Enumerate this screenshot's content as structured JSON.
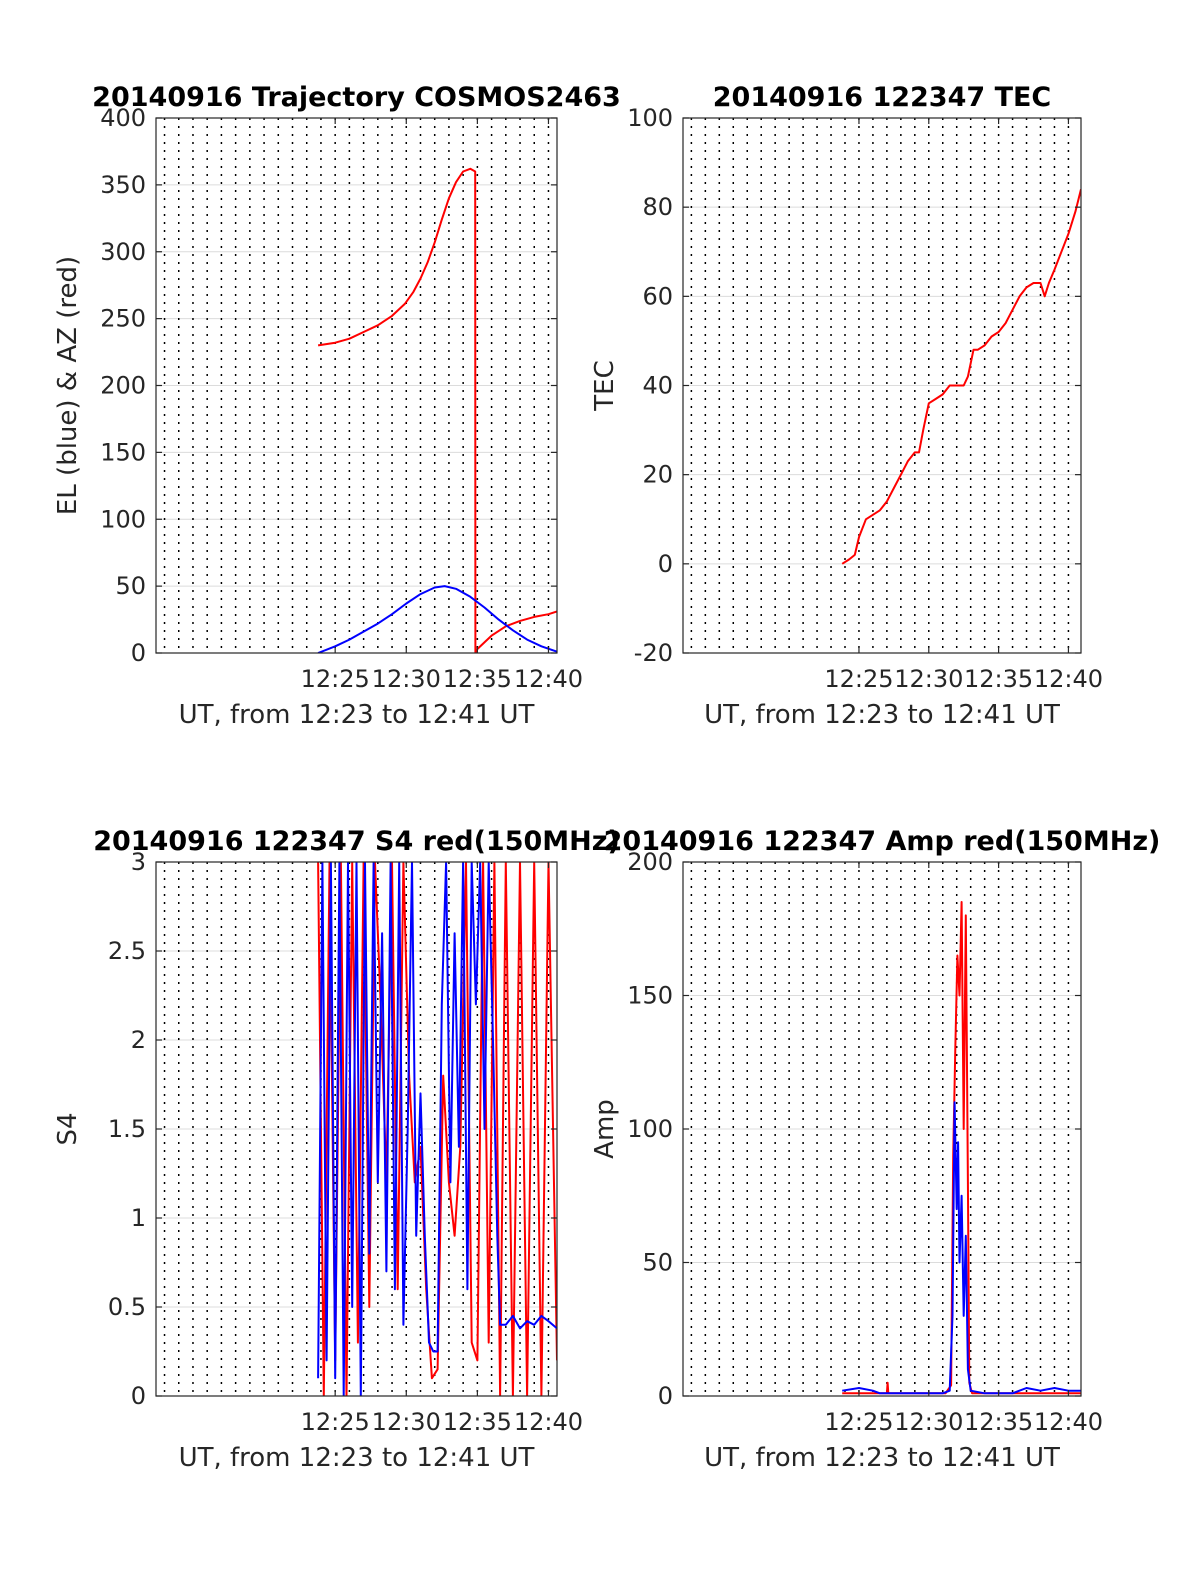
{
  "chart_data": [
    {
      "type": "line",
      "title": "20140916 Trajectory COSMOS2463",
      "xlabel": "UT, from 12:23 to 12:41 UT",
      "ylabel": "EL (blue) & AZ (red)",
      "xlim": [
        12.4,
        40.6
      ],
      "ylim": [
        0,
        400
      ],
      "xticks": [
        25,
        30,
        35,
        40
      ],
      "xtick_labels": [
        "12:25",
        "12:30",
        "12:35",
        "12:40"
      ],
      "yticks": [
        0,
        50,
        100,
        150,
        200,
        250,
        300,
        350,
        400
      ],
      "ytick_labels": [
        "0",
        "50",
        "100",
        "150",
        "200",
        "250",
        "300",
        "350",
        "400"
      ],
      "grid": true,
      "colors": {
        "red": "#ff0000",
        "blue": "#0000ff"
      },
      "series": [
        {
          "color": "#ff0000",
          "x": [
            23.8,
            25,
            26,
            27,
            28,
            29,
            29.9,
            30.5,
            31,
            31.5,
            32,
            32.5,
            33,
            33.5,
            34,
            34.5,
            34.85,
            34.86,
            35,
            36,
            37,
            38,
            39,
            40,
            40.6
          ],
          "y": [
            230,
            232,
            235,
            240,
            245,
            252,
            261,
            270,
            280,
            292,
            307,
            324,
            340,
            352,
            360,
            362,
            360,
            0,
            3,
            13,
            20,
            24,
            27,
            29,
            31
          ]
        },
        {
          "color": "#0000ff",
          "x": [
            23.8,
            25,
            26,
            27,
            28,
            29,
            30,
            31,
            32,
            32.7,
            33.5,
            34.5,
            35.5,
            36.5,
            37.5,
            38.5,
            39.5,
            40.6
          ],
          "y": [
            0,
            5,
            10,
            16,
            22,
            29,
            37,
            44,
            49,
            50,
            48,
            42,
            34,
            25,
            17,
            10,
            5,
            1
          ]
        }
      ]
    },
    {
      "type": "line",
      "title": "20140916 122347 TEC",
      "xlabel": "UT, from 12:23 to 12:41 UT",
      "ylabel": "TEC",
      "xlim": [
        12.4,
        40.9
      ],
      "ylim": [
        -20,
        100
      ],
      "xticks": [
        25,
        30,
        35,
        40
      ],
      "xtick_labels": [
        "12:25",
        "12:30",
        "12:35",
        "12:40"
      ],
      "yticks": [
        -20,
        0,
        20,
        40,
        60,
        80,
        100
      ],
      "ytick_labels": [
        "-20",
        "0",
        "20",
        "40",
        "60",
        "80",
        "100"
      ],
      "grid": true,
      "series": [
        {
          "color": "#ff0000",
          "x": [
            23.8,
            24.3,
            24.7,
            25,
            25.5,
            26,
            26.5,
            27,
            27.5,
            28,
            28.5,
            29,
            29.3,
            29.6,
            30,
            30.5,
            31,
            31.5,
            32,
            32.5,
            32.8,
            33.2,
            33.5,
            34,
            34.5,
            35,
            35.5,
            36,
            36.5,
            37,
            37.5,
            38,
            38.3,
            38.6,
            39,
            39.5,
            40,
            40.5,
            40.9
          ],
          "y": [
            0,
            1,
            2,
            6,
            10,
            11,
            12,
            14,
            17,
            20,
            23,
            25,
            25,
            30,
            36,
            37,
            38,
            40,
            40,
            40,
            42,
            48,
            48,
            49,
            51,
            52,
            54,
            57,
            60,
            62,
            63,
            63,
            60,
            63,
            66,
            70,
            74,
            79,
            84
          ]
        }
      ]
    },
    {
      "type": "line",
      "title": "20140916 122347 S4 red(150MHz)",
      "xlabel": "UT, from 12:23 to 12:41 UT",
      "ylabel": "S4",
      "xlim": [
        12.4,
        40.6
      ],
      "ylim": [
        0,
        3
      ],
      "xticks": [
        25,
        30,
        35,
        40
      ],
      "xtick_labels": [
        "12:25",
        "12:30",
        "12:35",
        "12:40"
      ],
      "yticks": [
        0,
        0.5,
        1,
        1.5,
        2,
        2.5,
        3
      ],
      "ytick_labels": [
        "0",
        "0.5",
        "1",
        "1.5",
        "2",
        "2.5",
        "3"
      ],
      "grid": true,
      "series": [
        {
          "color": "#ff0000",
          "x": [
            23.8,
            24.2,
            24.6,
            25,
            25.4,
            25.8,
            26.2,
            26.6,
            27,
            27.4,
            27.8,
            28.2,
            28.6,
            29,
            29.4,
            29.8,
            30.2,
            30.6,
            31,
            31.4,
            31.8,
            32.2,
            32.6,
            33,
            33.4,
            33.8,
            34.2,
            34.6,
            35,
            35.4,
            35.8,
            36.2,
            36.6,
            37,
            37.5,
            38,
            38.5,
            39,
            39.5,
            40,
            40.6
          ],
          "y": [
            3,
            0,
            3,
            0.2,
            3,
            0,
            3,
            0.3,
            3,
            0.5,
            3,
            2.2,
            1.2,
            3,
            0.6,
            3,
            1.8,
            1.2,
            1.4,
            0.6,
            0.1,
            0.15,
            1.8,
            1.2,
            0.9,
            1.4,
            3,
            0.3,
            0.2,
            3,
            0.3,
            3,
            0,
            3,
            0,
            3,
            0,
            3,
            0,
            3,
            0.2
          ]
        },
        {
          "color": "#0000ff",
          "x": [
            23.8,
            24.1,
            24.4,
            24.7,
            25,
            25.3,
            25.6,
            25.9,
            26.2,
            26.5,
            26.8,
            27.1,
            27.4,
            27.7,
            28,
            28.3,
            28.6,
            28.9,
            29.2,
            29.5,
            29.8,
            30.1,
            30.4,
            30.7,
            31,
            31.3,
            31.6,
            31.9,
            32.2,
            32.5,
            32.8,
            33.1,
            33.4,
            33.7,
            34,
            34.3,
            34.6,
            34.9,
            35.2,
            35.5,
            35.8,
            36.1,
            36.4,
            36.6,
            37,
            37.5,
            38,
            38.5,
            39,
            39.5,
            40,
            40.6
          ],
          "y": [
            0.1,
            3,
            0.2,
            3,
            0.1,
            3,
            0,
            3,
            0.5,
            3,
            0,
            3,
            0.8,
            3,
            1.2,
            2.6,
            0.7,
            3,
            0.6,
            3,
            0.4,
            1.5,
            3,
            0.9,
            1.7,
            0.9,
            0.3,
            0.25,
            0.25,
            2.2,
            3,
            1.2,
            2.6,
            1.4,
            3,
            0.6,
            3,
            2.2,
            3,
            1.5,
            3,
            2,
            0.9,
            0.4,
            0.4,
            0.45,
            0.38,
            0.42,
            0.4,
            0.45,
            0.42,
            0.38
          ]
        }
      ]
    },
    {
      "type": "line",
      "title": "20140916 122347 Amp red(150MHz)",
      "xlabel": "UT, from 12:23 to 12:41 UT",
      "ylabel": "Amp",
      "xlim": [
        12.4,
        40.9
      ],
      "ylim": [
        0,
        200
      ],
      "xticks": [
        25,
        30,
        35,
        40
      ],
      "xtick_labels": [
        "12:25",
        "12:30",
        "12:35",
        "12:40"
      ],
      "yticks": [
        0,
        50,
        100,
        150,
        200
      ],
      "ytick_labels": [
        "0",
        "50",
        "100",
        "150",
        "200"
      ],
      "grid": true,
      "series": [
        {
          "color": "#ff0000",
          "x": [
            23.8,
            26.5,
            27,
            27.05,
            27.1,
            27.2,
            31.2,
            31.6,
            31.75,
            31.9,
            32.05,
            32.2,
            32.35,
            32.5,
            32.65,
            32.8,
            32.9,
            33.1,
            33.5,
            40.9
          ],
          "y": [
            1,
            1,
            1,
            5,
            1,
            1,
            1,
            4,
            90,
            130,
            165,
            150,
            185,
            100,
            180,
            80,
            5,
            1,
            1,
            1
          ]
        },
        {
          "color": "#0000ff",
          "x": [
            23.8,
            25,
            26,
            26.5,
            30,
            31,
            31.5,
            31.7,
            31.85,
            32,
            32.1,
            32.2,
            32.35,
            32.5,
            32.65,
            32.8,
            33,
            34,
            36,
            37,
            38,
            39,
            40,
            40.9
          ],
          "y": [
            2,
            3,
            2,
            1,
            1,
            1,
            2,
            30,
            110,
            70,
            95,
            50,
            75,
            30,
            60,
            10,
            2,
            1,
            1,
            3,
            2,
            3,
            2,
            2
          ]
        }
      ]
    }
  ]
}
